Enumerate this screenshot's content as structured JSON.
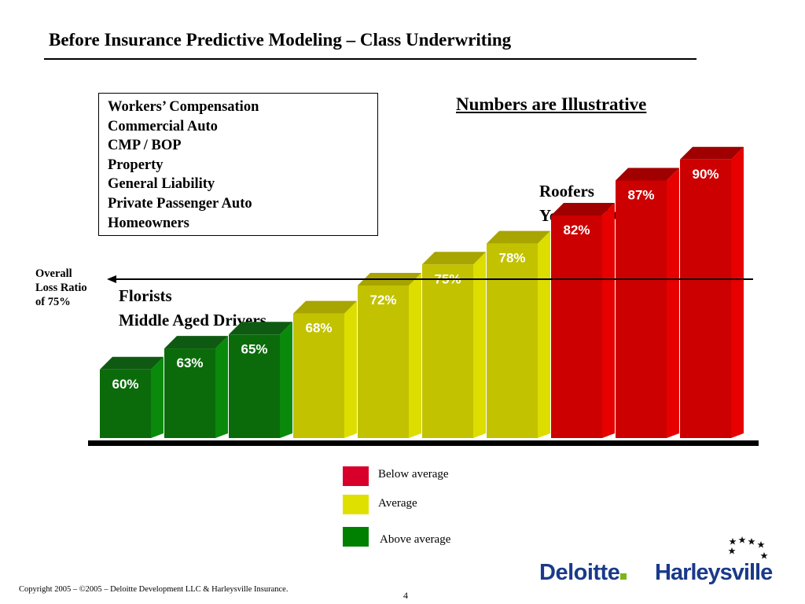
{
  "title": "Before Insurance Predictive Modeling – Class Underwriting",
  "lines_of_business": [
    "Workers’ Compensation",
    "Commercial Auto",
    "CMP / BOP",
    "Property",
    "General Liability",
    "Private Passenger Auto",
    "Homeowners"
  ],
  "note": "Numbers are Illustrative",
  "callouts": {
    "high": [
      "Roofers",
      "Youthful Drivers"
    ],
    "low": [
      "Florists",
      "Middle Aged Drivers"
    ]
  },
  "overall_label": [
    "Overall",
    "Loss Ratio",
    "of 75%"
  ],
  "legend": [
    {
      "label": "Below average",
      "color": "#d8002a"
    },
    {
      "label": "Average",
      "color": "#e0e000"
    },
    {
      "label": "Above average",
      "color": "#008000"
    }
  ],
  "chart_data": {
    "type": "bar",
    "title": "",
    "xlabel": "",
    "ylabel": "",
    "categories": [
      "",
      "",
      "",
      "",
      "",
      "",
      "",
      "",
      "",
      ""
    ],
    "values": [
      60,
      63,
      65,
      68,
      72,
      75,
      78,
      82,
      87,
      90
    ],
    "value_labels": [
      "60%",
      "63%",
      "65%",
      "68%",
      "72%",
      "75%",
      "78%",
      "82%",
      "87%",
      "90%"
    ],
    "groups": [
      "Above average",
      "Above average",
      "Above average",
      "Average",
      "Average",
      "Average",
      "Average",
      "Below average",
      "Below average",
      "Below average"
    ],
    "reference_line": {
      "value": 75,
      "label": "Overall Loss Ratio of 75%"
    },
    "unit": "%",
    "grid": false,
    "legend_position": "bottom-center"
  },
  "footer": {
    "copyright": "Copyright 2005 – ©2005 – Deloitte Development LLC & Harleysville Insurance.",
    "page_number": "4"
  },
  "logos": {
    "deloitte": "Deloitte",
    "harleysville": "Harleysville"
  }
}
